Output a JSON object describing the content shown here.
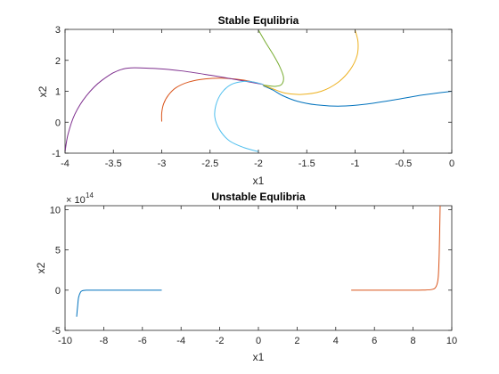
{
  "chart_data": [
    {
      "type": "line",
      "title": "Stable Equlibria",
      "xlabel": "x1",
      "ylabel": "x2",
      "xlim": [
        -4,
        0
      ],
      "ylim": [
        -1,
        3
      ],
      "xticks": [
        -4,
        -3.5,
        -3,
        -2.5,
        -2,
        -1.5,
        -1,
        -0.5,
        0
      ],
      "yticks": [
        -1,
        0,
        1,
        2,
        3
      ],
      "xtick_labels": [
        "-4",
        "-3.5",
        "-3",
        "-2.5",
        "-2",
        "-1.5",
        "-1",
        "-0.5",
        "0"
      ],
      "ytick_labels": [
        "-1",
        "0",
        "1",
        "2",
        "3"
      ],
      "grid": false,
      "series": [
        {
          "color": "#0072BD",
          "x": [
            0,
            -0.3,
            -0.6,
            -0.9,
            -1.15,
            -1.4,
            -1.6,
            -1.75,
            -1.85,
            -1.95
          ],
          "y": [
            1.0,
            0.88,
            0.72,
            0.58,
            0.52,
            0.56,
            0.68,
            0.86,
            1.04,
            1.18
          ]
        },
        {
          "color": "#D95319",
          "x": [
            -3,
            -3,
            -2.98,
            -2.93,
            -2.85,
            -2.72,
            -2.55,
            -2.35,
            -2.15,
            -1.95
          ],
          "y": [
            0.02,
            0.3,
            0.6,
            0.88,
            1.12,
            1.3,
            1.4,
            1.42,
            1.36,
            1.22
          ]
        },
        {
          "color": "#EDB120",
          "x": [
            -1.0,
            -0.97,
            -0.98,
            -1.05,
            -1.18,
            -1.35,
            -1.55,
            -1.72,
            -1.85,
            -1.95
          ],
          "y": [
            2.98,
            2.6,
            2.15,
            1.7,
            1.28,
            1.0,
            0.9,
            0.94,
            1.08,
            1.2
          ]
        },
        {
          "color": "#7E2F8E",
          "x": [
            -4,
            -3.97,
            -3.9,
            -3.78,
            -3.62,
            -3.4,
            -3.1,
            -2.8,
            -2.5,
            -2.2,
            -1.95
          ],
          "y": [
            -0.95,
            -0.4,
            0.25,
            0.85,
            1.35,
            1.72,
            1.74,
            1.66,
            1.52,
            1.36,
            1.22
          ]
        },
        {
          "color": "#77AC30",
          "x": [
            -2.0,
            -1.93,
            -1.85,
            -1.78,
            -1.74,
            -1.76,
            -1.82,
            -1.9,
            -1.95
          ],
          "y": [
            2.98,
            2.6,
            2.2,
            1.8,
            1.45,
            1.22,
            1.16,
            1.18,
            1.2
          ]
        },
        {
          "color": "#4DBEEE",
          "x": [
            -2.0,
            -2.15,
            -2.3,
            -2.4,
            -2.45,
            -2.44,
            -2.38,
            -2.28,
            -2.15,
            -2.05,
            -1.95
          ],
          "y": [
            -0.95,
            -0.82,
            -0.6,
            -0.25,
            0.15,
            0.55,
            0.95,
            1.22,
            1.32,
            1.3,
            1.22
          ]
        }
      ]
    },
    {
      "type": "line",
      "title": "Unstable Equlibria",
      "xlabel": "x1",
      "ylabel": "x2",
      "xlim": [
        -10,
        10
      ],
      "ylim": [
        -5,
        10.5
      ],
      "xticks": [
        -10,
        -8,
        -6,
        -4,
        -2,
        0,
        2,
        4,
        6,
        8,
        10
      ],
      "yticks": [
        -5,
        0,
        5,
        10
      ],
      "xtick_labels": [
        "-10",
        "-8",
        "-6",
        "-4",
        "-2",
        "0",
        "2",
        "4",
        "6",
        "8",
        "10"
      ],
      "ytick_labels": [
        "-5",
        "0",
        "5",
        "10"
      ],
      "y_exponent_base": "× 10",
      "y_exponent_power": "14",
      "grid": false,
      "series": [
        {
          "color": "#0072BD",
          "x": [
            -9.4,
            -9.35,
            -9.3,
            -9.2,
            -9.1,
            -8.9,
            -8.5,
            -7.5,
            -6,
            -5
          ],
          "y": [
            -3.3,
            -2.0,
            -0.9,
            -0.25,
            -0.07,
            -0.01,
            0,
            0,
            0,
            0
          ]
        },
        {
          "color": "#D95319",
          "x": [
            4.8,
            6,
            7.5,
            8.5,
            9.0,
            9.2,
            9.3,
            9.35,
            9.4
          ],
          "y": [
            0,
            0,
            0,
            0.01,
            0.1,
            0.5,
            1.6,
            4.5,
            10.5
          ]
        }
      ]
    }
  ]
}
